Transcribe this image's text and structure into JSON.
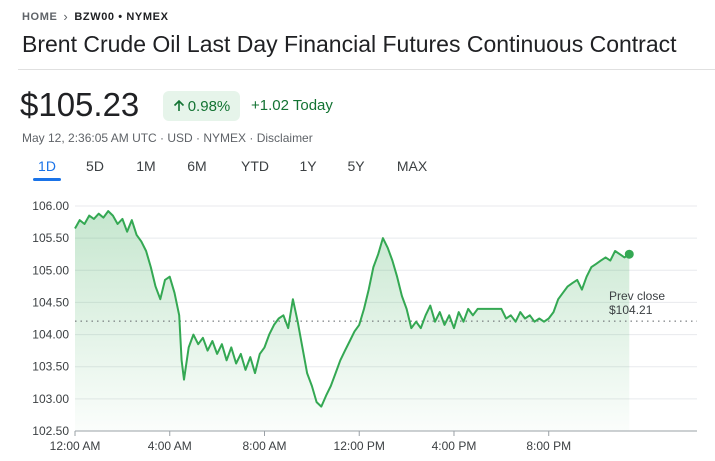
{
  "breadcrumb": {
    "home": "HOME",
    "ticker": "BZW00 • NYMEX"
  },
  "title": "Brent Crude Oil Last Day Financial Futures Continuous Contract",
  "quote": {
    "price": "$105.23",
    "change_pct": "0.98%",
    "change_today": "+1.02 Today",
    "meta": "May 12, 2:36:05 AM UTC · USD · NYMEX · Disclaimer"
  },
  "tabs": [
    "1D",
    "5D",
    "1M",
    "6M",
    "YTD",
    "1Y",
    "5Y",
    "MAX"
  ],
  "active_tab": "1D",
  "colors": {
    "positive": "#137333",
    "line": "#34a853",
    "accent": "#1a73e8"
  },
  "chart_data": {
    "type": "area",
    "ylim": [
      102.5,
      106.0
    ],
    "yticks": [
      "106.00",
      "105.50",
      "105.00",
      "104.50",
      "104.00",
      "103.50",
      "103.00",
      "102.50"
    ],
    "xticks": [
      "12:00 AM",
      "4:00 AM",
      "8:00 AM",
      "12:00 PM",
      "4:00 PM",
      "8:00 PM"
    ],
    "x_unit": "hours since 12:00 AM",
    "xlim": [
      0,
      23.6
    ],
    "prev_close_label": "Prev close",
    "prev_close_value": "$104.21",
    "prev_close": 104.21,
    "series": [
      {
        "values": [
          [
            0.0,
            105.65
          ],
          [
            0.2,
            105.78
          ],
          [
            0.4,
            105.72
          ],
          [
            0.6,
            105.85
          ],
          [
            0.8,
            105.8
          ],
          [
            1.0,
            105.88
          ],
          [
            1.2,
            105.82
          ],
          [
            1.4,
            105.92
          ],
          [
            1.6,
            105.85
          ],
          [
            1.8,
            105.72
          ],
          [
            2.0,
            105.8
          ],
          [
            2.2,
            105.6
          ],
          [
            2.4,
            105.78
          ],
          [
            2.6,
            105.55
          ],
          [
            2.8,
            105.45
          ],
          [
            3.0,
            105.3
          ],
          [
            3.2,
            105.05
          ],
          [
            3.4,
            104.75
          ],
          [
            3.6,
            104.55
          ],
          [
            3.8,
            104.85
          ],
          [
            4.0,
            104.9
          ],
          [
            4.2,
            104.65
          ],
          [
            4.4,
            104.3
          ],
          [
            4.5,
            103.6
          ],
          [
            4.6,
            103.3
          ],
          [
            4.8,
            103.8
          ],
          [
            5.0,
            104.0
          ],
          [
            5.2,
            103.85
          ],
          [
            5.4,
            103.95
          ],
          [
            5.6,
            103.75
          ],
          [
            5.8,
            103.9
          ],
          [
            6.0,
            103.7
          ],
          [
            6.2,
            103.85
          ],
          [
            6.4,
            103.6
          ],
          [
            6.6,
            103.8
          ],
          [
            6.8,
            103.55
          ],
          [
            7.0,
            103.7
          ],
          [
            7.2,
            103.45
          ],
          [
            7.4,
            103.65
          ],
          [
            7.6,
            103.4
          ],
          [
            7.8,
            103.7
          ],
          [
            8.0,
            103.8
          ],
          [
            8.2,
            104.0
          ],
          [
            8.4,
            104.15
          ],
          [
            8.6,
            104.25
          ],
          [
            8.8,
            104.3
          ],
          [
            9.0,
            104.1
          ],
          [
            9.2,
            104.55
          ],
          [
            9.4,
            104.2
          ],
          [
            9.6,
            103.8
          ],
          [
            9.8,
            103.4
          ],
          [
            10.0,
            103.2
          ],
          [
            10.2,
            102.95
          ],
          [
            10.4,
            102.88
          ],
          [
            10.6,
            103.05
          ],
          [
            10.8,
            103.2
          ],
          [
            11.0,
            103.4
          ],
          [
            11.2,
            103.6
          ],
          [
            11.4,
            103.75
          ],
          [
            11.6,
            103.9
          ],
          [
            11.8,
            104.05
          ],
          [
            12.0,
            104.15
          ],
          [
            12.2,
            104.4
          ],
          [
            12.4,
            104.7
          ],
          [
            12.6,
            105.05
          ],
          [
            12.8,
            105.25
          ],
          [
            13.0,
            105.5
          ],
          [
            13.2,
            105.35
          ],
          [
            13.4,
            105.15
          ],
          [
            13.6,
            104.9
          ],
          [
            13.8,
            104.6
          ],
          [
            14.0,
            104.4
          ],
          [
            14.2,
            104.1
          ],
          [
            14.4,
            104.2
          ],
          [
            14.6,
            104.1
          ],
          [
            14.8,
            104.3
          ],
          [
            15.0,
            104.45
          ],
          [
            15.2,
            104.2
          ],
          [
            15.4,
            104.35
          ],
          [
            15.6,
            104.15
          ],
          [
            15.8,
            104.3
          ],
          [
            16.0,
            104.1
          ],
          [
            16.2,
            104.35
          ],
          [
            16.4,
            104.2
          ],
          [
            16.6,
            104.4
          ],
          [
            16.8,
            104.3
          ],
          [
            17.0,
            104.4
          ],
          [
            17.2,
            104.4
          ],
          [
            17.5,
            104.4
          ],
          [
            17.8,
            104.4
          ],
          [
            18.0,
            104.4
          ],
          [
            18.2,
            104.25
          ],
          [
            18.4,
            104.3
          ],
          [
            18.6,
            104.2
          ],
          [
            18.8,
            104.35
          ],
          [
            19.0,
            104.25
          ],
          [
            19.2,
            104.3
          ],
          [
            19.4,
            104.2
          ],
          [
            19.6,
            104.25
          ],
          [
            19.8,
            104.2
          ],
          [
            20.0,
            104.25
          ],
          [
            20.2,
            104.35
          ],
          [
            20.4,
            104.55
          ],
          [
            20.6,
            104.65
          ],
          [
            20.8,
            104.75
          ],
          [
            21.0,
            104.8
          ],
          [
            21.2,
            104.85
          ],
          [
            21.4,
            104.7
          ],
          [
            21.6,
            104.9
          ],
          [
            21.8,
            105.05
          ],
          [
            22.0,
            105.1
          ],
          [
            22.2,
            105.15
          ],
          [
            22.4,
            105.2
          ],
          [
            22.6,
            105.15
          ],
          [
            22.8,
            105.3
          ],
          [
            23.0,
            105.25
          ],
          [
            23.2,
            105.2
          ],
          [
            23.4,
            105.25
          ]
        ]
      }
    ]
  }
}
